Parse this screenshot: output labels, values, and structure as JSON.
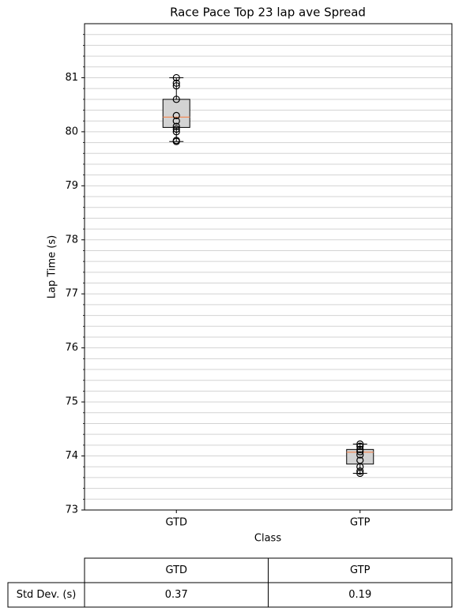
{
  "chart_data": {
    "type": "box",
    "title": "Race Pace Top 23 lap ave Spread",
    "xlabel": "Class",
    "ylabel": "Lap Time (s)",
    "categories": [
      "GTD",
      "GTP"
    ],
    "boxes": [
      {
        "whislo": 79.82,
        "q1": 80.08,
        "median": 80.27,
        "q3": 80.6,
        "whishi": 81.0,
        "points": [
          79.82,
          79.84,
          80.0,
          80.05,
          80.1,
          80.2,
          80.3,
          80.6,
          80.85,
          80.9,
          81.0
        ]
      },
      {
        "whislo": 73.68,
        "q1": 73.85,
        "median": 74.07,
        "q3": 74.12,
        "whishi": 74.22,
        "points": [
          73.68,
          73.72,
          73.8,
          73.92,
          74.02,
          74.08,
          74.12,
          74.18,
          74.22
        ]
      }
    ],
    "box_color": "#d3d3d3",
    "median_color": "#f08b5a",
    "grid": true,
    "grid_color": "#d3d3d3",
    "ylim": [
      73,
      82
    ],
    "yticks": [
      73,
      74,
      75,
      76,
      77,
      78,
      79,
      80,
      81
    ],
    "yminor_ticks": [
      73.2,
      73.4,
      73.6,
      73.8,
      74.2,
      74.4,
      74.6,
      74.8,
      75.2,
      75.4,
      75.6,
      75.8,
      76.2,
      76.4,
      76.6,
      76.8,
      77.2,
      77.4,
      77.6,
      77.8,
      78.2,
      78.4,
      78.6,
      78.8,
      79.2,
      79.4,
      79.6,
      79.8,
      80.2,
      80.4,
      80.6,
      80.8,
      81.2,
      81.4,
      81.6,
      81.8
    ],
    "table": {
      "columns": [
        "GTD",
        "GTP"
      ],
      "rows": [
        {
          "label": "Std Dev. (s)",
          "values": [
            0.37,
            0.19
          ]
        }
      ]
    }
  }
}
